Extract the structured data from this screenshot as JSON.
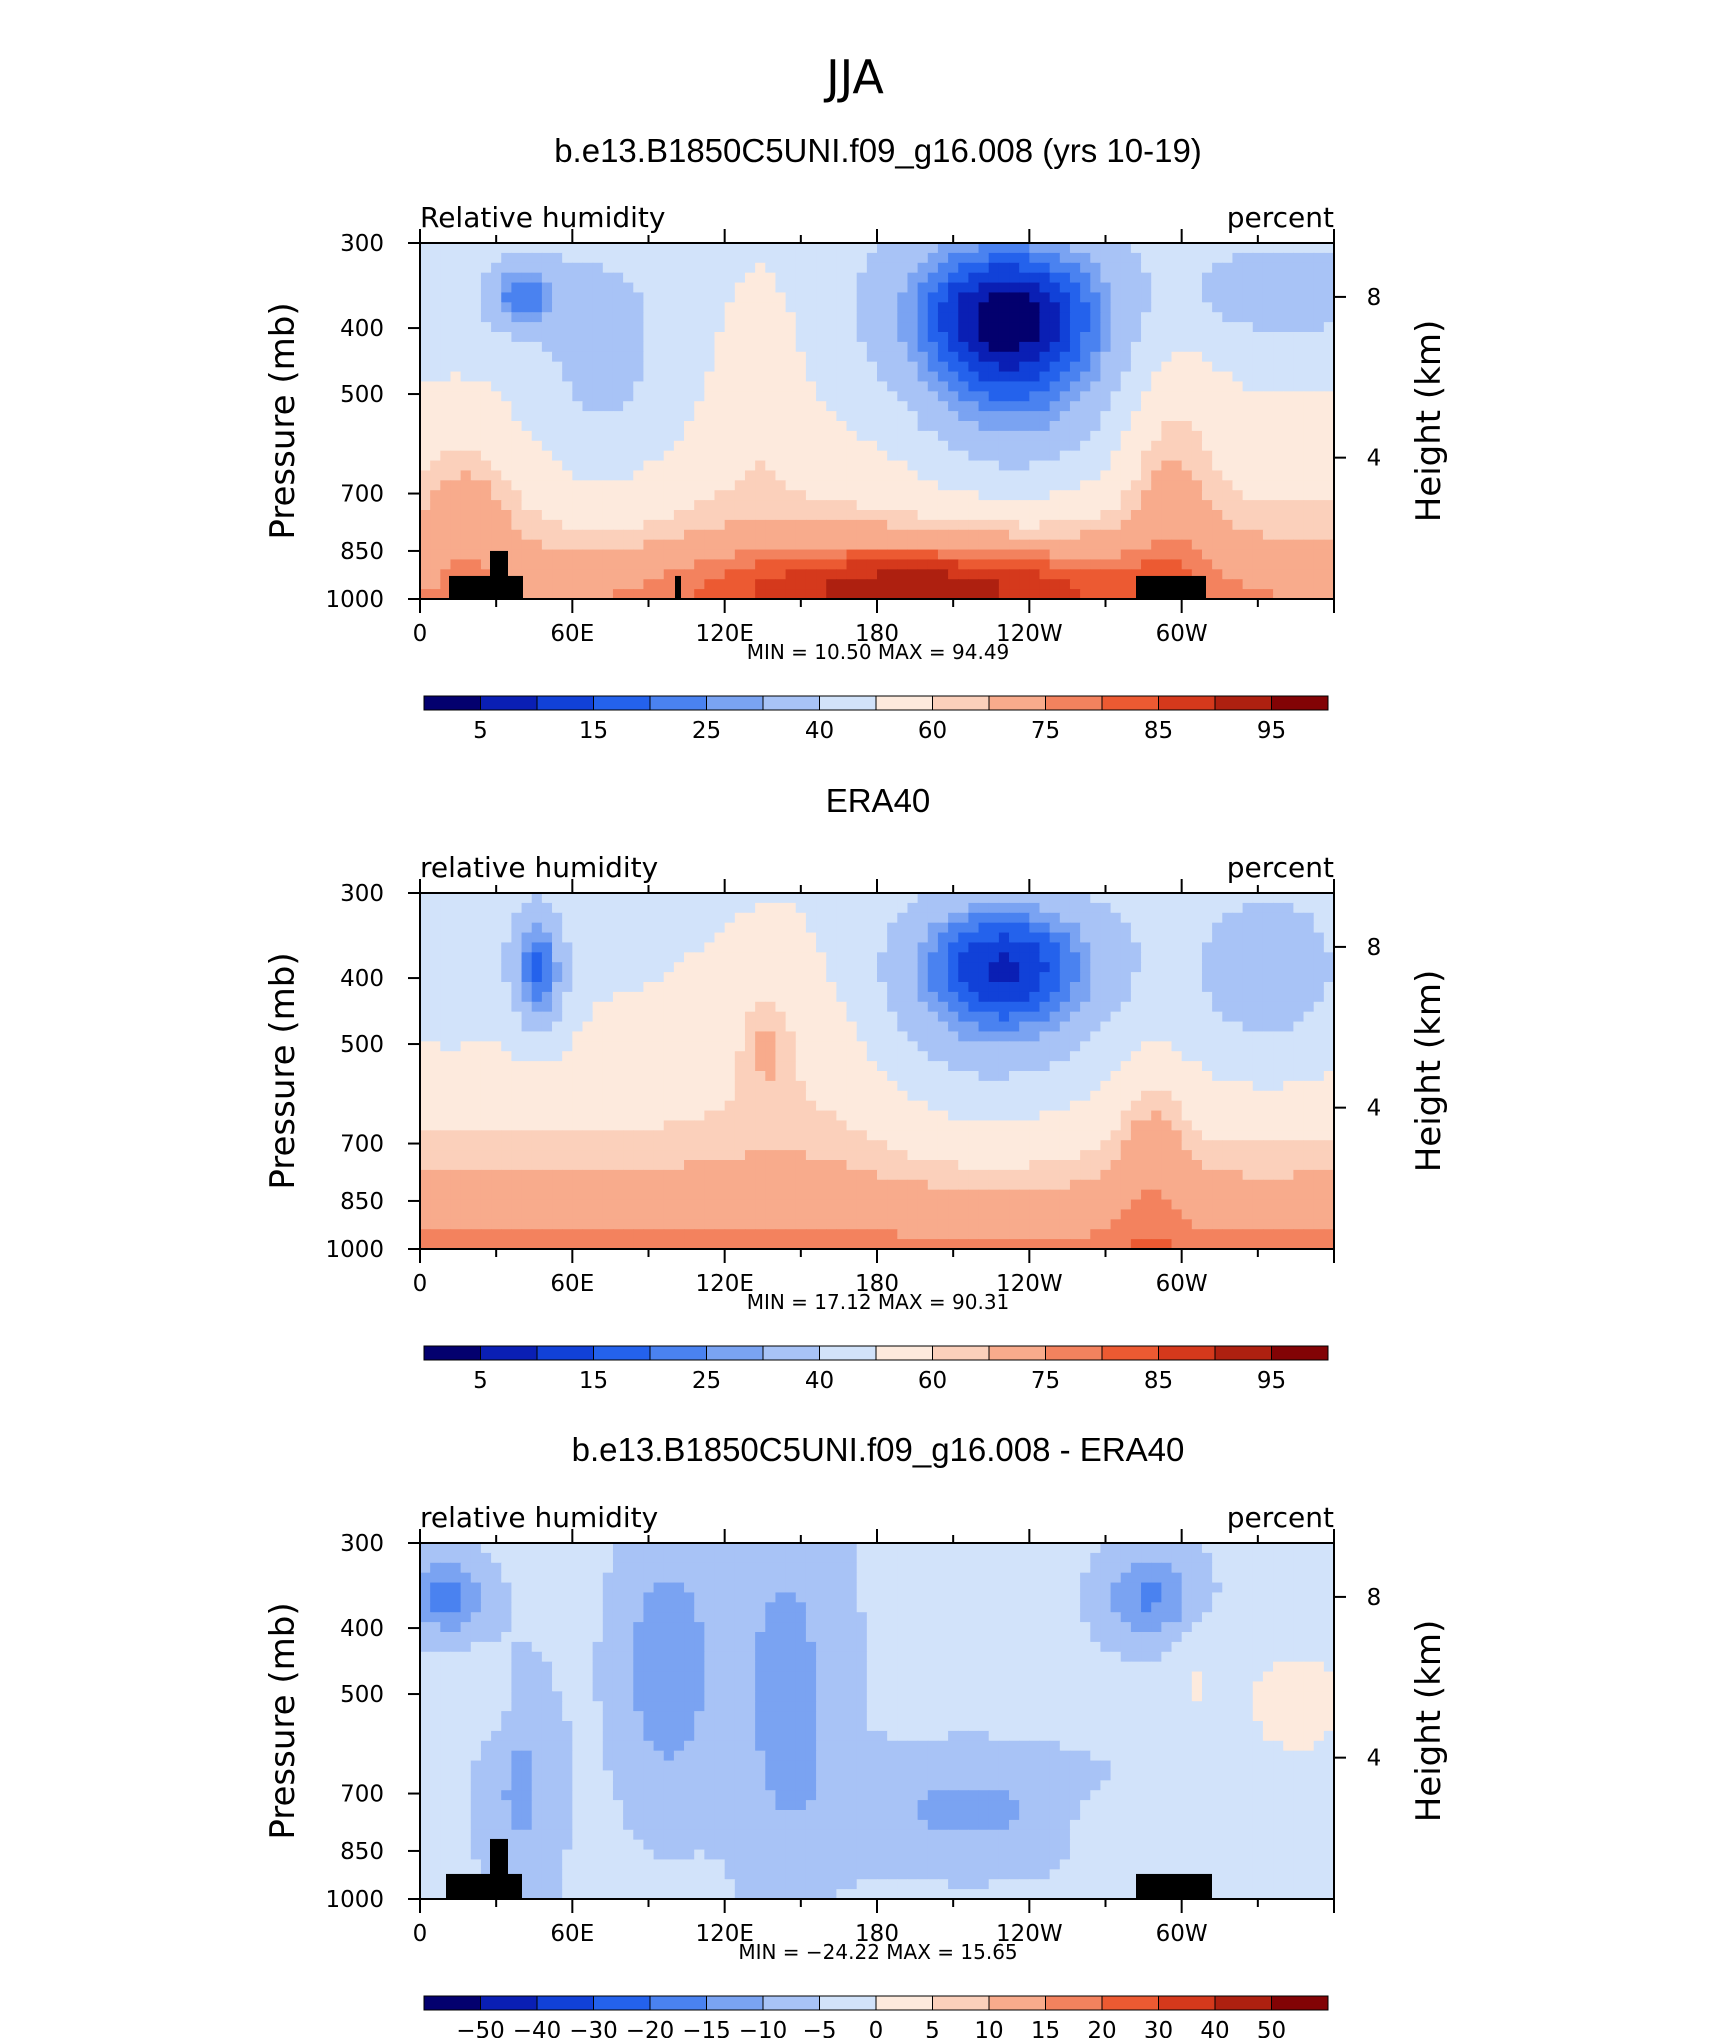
{
  "figure": {
    "title": "JJA"
  },
  "panels": [
    {
      "id": "model",
      "title": "b.e13.B1850C5UNI.f09_g16.008 (yrs 10-19)",
      "left_label": "Relative humidity",
      "right_label": "percent",
      "stats_text": "MIN =   10.50   MAX =   94.49",
      "colorbar_ticks": [
        "5",
        "15",
        "25",
        "40",
        "60",
        "75",
        "85",
        "95"
      ]
    },
    {
      "id": "obs",
      "title": "ERA40",
      "left_label": "relative humidity",
      "right_label": "percent",
      "stats_text": "MIN =   17.12   MAX =   90.31",
      "colorbar_ticks": [
        "5",
        "15",
        "25",
        "40",
        "60",
        "75",
        "85",
        "95"
      ]
    },
    {
      "id": "diff",
      "title": "b.e13.B1850C5UNI.f09_g16.008 - ERA40",
      "left_label": "relative humidity",
      "right_label": "percent",
      "stats_text": "MIN = −24.22   MAX =   15.65",
      "colorbar_ticks": [
        "−50",
        "−40",
        "−30",
        "−20",
        "−15",
        "−10",
        "−5",
        "0",
        "5",
        "10",
        "15",
        "20",
        "30",
        "40",
        "50"
      ]
    }
  ],
  "chart_data": [
    {
      "type": "heatmap",
      "panel": "model",
      "title": "b.e13.B1850C5UNI.f09_g16.008 (yrs 10-19)",
      "xlabel": "",
      "ylabel": "Pressure (mb)",
      "y2label": "Height (km)",
      "x_ticks": [
        "0",
        "60E",
        "120E",
        "180",
        "120W",
        "60W"
      ],
      "y_ticks": [
        "300",
        "400",
        "500",
        "700",
        "850",
        "1000"
      ],
      "y2_ticks": [
        "8",
        "4"
      ],
      "xlim": [
        0,
        360
      ],
      "ylim": [
        1000,
        300
      ],
      "y_scale": "log",
      "units": "percent",
      "min": 10.5,
      "max": 94.49,
      "contour_levels": [
        5,
        10,
        15,
        20,
        25,
        30,
        40,
        50,
        60,
        65,
        75,
        80,
        85,
        90,
        95
      ],
      "level_colors": [
        "#03006e",
        "#0a1fb4",
        "#1141d8",
        "#2462ec",
        "#4a82f0",
        "#7aa3f2",
        "#a8c3f6",
        "#d2e3fa",
        "#fdeadd",
        "#fbd0bb",
        "#f8ab8c",
        "#f3825e",
        "#ec5a32",
        "#d5391c",
        "#ae2010",
        "#820305"
      ],
      "terrain": true
    },
    {
      "type": "heatmap",
      "panel": "obs",
      "title": "ERA40",
      "xlabel": "",
      "ylabel": "Pressure (mb)",
      "y2label": "Height (km)",
      "x_ticks": [
        "0",
        "60E",
        "120E",
        "180",
        "120W",
        "60W"
      ],
      "y_ticks": [
        "300",
        "400",
        "500",
        "700",
        "850",
        "1000"
      ],
      "y2_ticks": [
        "8",
        "4"
      ],
      "xlim": [
        0,
        360
      ],
      "ylim": [
        1000,
        300
      ],
      "y_scale": "log",
      "units": "percent",
      "min": 17.12,
      "max": 90.31,
      "contour_levels": [
        5,
        10,
        15,
        20,
        25,
        30,
        40,
        50,
        60,
        65,
        75,
        80,
        85,
        90,
        95
      ],
      "level_colors": [
        "#03006e",
        "#0a1fb4",
        "#1141d8",
        "#2462ec",
        "#4a82f0",
        "#7aa3f2",
        "#a8c3f6",
        "#d2e3fa",
        "#fdeadd",
        "#fbd0bb",
        "#f8ab8c",
        "#f3825e",
        "#ec5a32",
        "#d5391c",
        "#ae2010",
        "#820305"
      ],
      "terrain": false
    },
    {
      "type": "heatmap",
      "panel": "diff",
      "title": "b.e13.B1850C5UNI.f09_g16.008 - ERA40",
      "xlabel": "",
      "ylabel": "Pressure (mb)",
      "y2label": "Height (km)",
      "x_ticks": [
        "0",
        "60E",
        "120E",
        "180",
        "120W",
        "60W"
      ],
      "y_ticks": [
        "300",
        "400",
        "500",
        "700",
        "850",
        "1000"
      ],
      "y2_ticks": [
        "8",
        "4"
      ],
      "xlim": [
        0,
        360
      ],
      "ylim": [
        1000,
        300
      ],
      "y_scale": "log",
      "units": "percent",
      "min": -24.22,
      "max": 15.65,
      "contour_levels": [
        -50,
        -40,
        -30,
        -20,
        -15,
        -10,
        -5,
        0,
        5,
        10,
        15,
        20,
        30,
        40,
        50
      ],
      "level_colors": [
        "#03006e",
        "#0a1fb4",
        "#1141d8",
        "#2462ec",
        "#4a82f0",
        "#7aa3f2",
        "#a8c3f6",
        "#d2e3fa",
        "#fdeadd",
        "#fbd0bb",
        "#f8ab8c",
        "#f3825e",
        "#ec5a32",
        "#d5391c",
        "#ae2010",
        "#820305"
      ],
      "terrain": true
    }
  ]
}
